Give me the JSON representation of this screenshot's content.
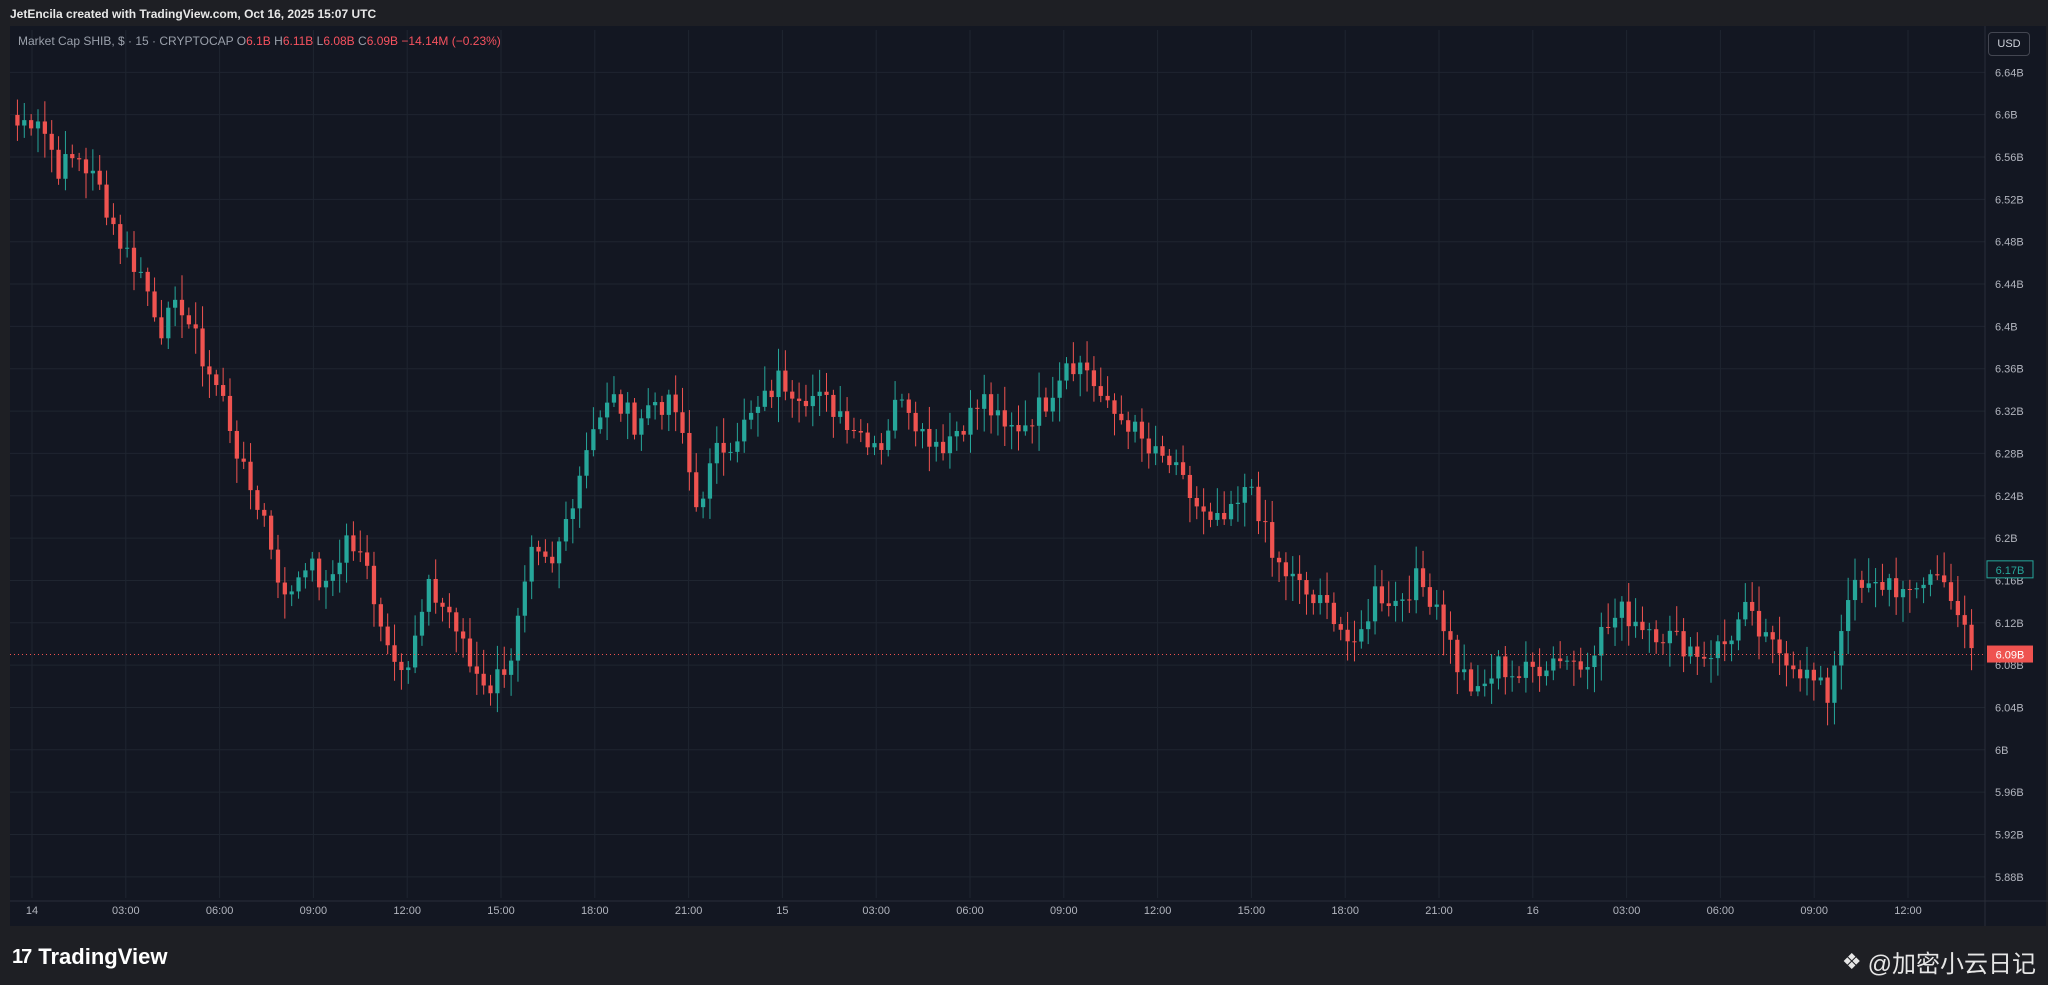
{
  "header": {
    "attribution": "JetEncila created with TradingView.com, Oct 16, 2025 15:07 UTC"
  },
  "legend": {
    "symbol": "Market Cap SHIB, $ · 15 · CRYPTOCAP",
    "o_label": "O",
    "o_value": "6.1B",
    "h_label": "H",
    "h_value": "6.11B",
    "l_label": "L",
    "l_value": "6.08B",
    "c_label": "C",
    "c_value": "6.09B",
    "change": "−14.14M (−0.23%)"
  },
  "currency_button": "USD",
  "price_tags": {
    "high_tag": "6.17B",
    "current_tag": "6.09B"
  },
  "footer": {
    "brand": "TradingView",
    "brand_mark": "17",
    "watermark": "@加密小云日记",
    "watermark_icon": "binance-diamond-icon"
  },
  "colors": {
    "up": "#26a69a",
    "down": "#ef5350",
    "background": "#131722",
    "grid": "#1f2530",
    "axis_text": "#b2b5be"
  },
  "chart_data": {
    "type": "candlestick",
    "title": "",
    "xlabel": "",
    "ylabel": "",
    "ylim": [
      5.86,
      6.68
    ],
    "y_ticks": [
      5.88,
      5.92,
      5.96,
      6.0,
      6.04,
      6.08,
      6.12,
      6.16,
      6.2,
      6.24,
      6.28,
      6.32,
      6.36,
      6.4,
      6.44,
      6.48,
      6.52,
      6.56,
      6.6,
      6.64
    ],
    "y_tick_labels": [
      "5.88B",
      "5.92B",
      "5.96B",
      "6B",
      "6.04B",
      "6.08B",
      "6.12B",
      "6.16B",
      "6.2B",
      "6.24B",
      "6.28B",
      "6.32B",
      "6.36B",
      "6.4B",
      "6.44B",
      "6.48B",
      "6.52B",
      "6.56B",
      "6.6B",
      "6.64B"
    ],
    "x_tick_labels": [
      "14",
      "03:00",
      "06:00",
      "09:00",
      "12:00",
      "15:00",
      "18:00",
      "21:00",
      "15",
      "03:00",
      "06:00",
      "09:00",
      "12:00",
      "15:00",
      "18:00",
      "21:00",
      "16",
      "03:00",
      "06:00",
      "09:00",
      "12:00"
    ],
    "interval": "15",
    "anchor_points": [
      [
        0,
        6.59
      ],
      [
        3,
        6.6
      ],
      [
        6,
        6.55
      ],
      [
        9,
        6.56
      ],
      [
        12,
        6.53
      ],
      [
        15,
        6.48
      ],
      [
        18,
        6.45
      ],
      [
        21,
        6.4
      ],
      [
        24,
        6.42
      ],
      [
        27,
        6.37
      ],
      [
        30,
        6.33
      ],
      [
        33,
        6.26
      ],
      [
        36,
        6.22
      ],
      [
        39,
        6.14
      ],
      [
        42,
        6.18
      ],
      [
        45,
        6.15
      ],
      [
        48,
        6.2
      ],
      [
        51,
        6.17
      ],
      [
        54,
        6.1
      ],
      [
        57,
        6.08
      ],
      [
        60,
        6.15
      ],
      [
        63,
        6.13
      ],
      [
        66,
        6.08
      ],
      [
        69,
        6.06
      ],
      [
        72,
        6.09
      ],
      [
        75,
        6.18
      ],
      [
        78,
        6.17
      ],
      [
        81,
        6.24
      ],
      [
        84,
        6.31
      ],
      [
        87,
        6.33
      ],
      [
        90,
        6.31
      ],
      [
        93,
        6.33
      ],
      [
        96,
        6.32
      ],
      [
        99,
        6.23
      ],
      [
        102,
        6.28
      ],
      [
        105,
        6.3
      ],
      [
        108,
        6.32
      ],
      [
        111,
        6.35
      ],
      [
        114,
        6.34
      ],
      [
        117,
        6.33
      ],
      [
        120,
        6.32
      ],
      [
        123,
        6.3
      ],
      [
        126,
        6.29
      ],
      [
        129,
        6.34
      ],
      [
        132,
        6.3
      ],
      [
        135,
        6.29
      ],
      [
        138,
        6.31
      ],
      [
        141,
        6.33
      ],
      [
        144,
        6.3
      ],
      [
        147,
        6.31
      ],
      [
        150,
        6.33
      ],
      [
        153,
        6.37
      ],
      [
        156,
        6.36
      ],
      [
        159,
        6.32
      ],
      [
        162,
        6.31
      ],
      [
        165,
        6.28
      ],
      [
        168,
        6.27
      ],
      [
        171,
        6.24
      ],
      [
        174,
        6.21
      ],
      [
        177,
        6.22
      ],
      [
        180,
        6.25
      ],
      [
        183,
        6.18
      ],
      [
        186,
        6.16
      ],
      [
        189,
        6.14
      ],
      [
        192,
        6.13
      ],
      [
        195,
        6.09
      ],
      [
        198,
        6.15
      ],
      [
        201,
        6.14
      ],
      [
        204,
        6.16
      ],
      [
        207,
        6.14
      ],
      [
        210,
        6.08
      ],
      [
        213,
        6.05
      ],
      [
        216,
        6.08
      ],
      [
        219,
        6.07
      ],
      [
        222,
        6.08
      ],
      [
        225,
        6.09
      ],
      [
        228,
        6.08
      ],
      [
        231,
        6.11
      ],
      [
        234,
        6.13
      ],
      [
        237,
        6.12
      ],
      [
        240,
        6.11
      ],
      [
        243,
        6.1
      ],
      [
        246,
        6.09
      ],
      [
        249,
        6.1
      ],
      [
        252,
        6.13
      ],
      [
        255,
        6.1
      ],
      [
        258,
        6.09
      ],
      [
        261,
        6.07
      ],
      [
        264,
        6.05
      ],
      [
        267,
        6.15
      ],
      [
        270,
        6.15
      ],
      [
        273,
        6.16
      ],
      [
        276,
        6.14
      ],
      [
        279,
        6.17
      ],
      [
        282,
        6.15
      ],
      [
        285,
        6.09
      ]
    ]
  }
}
